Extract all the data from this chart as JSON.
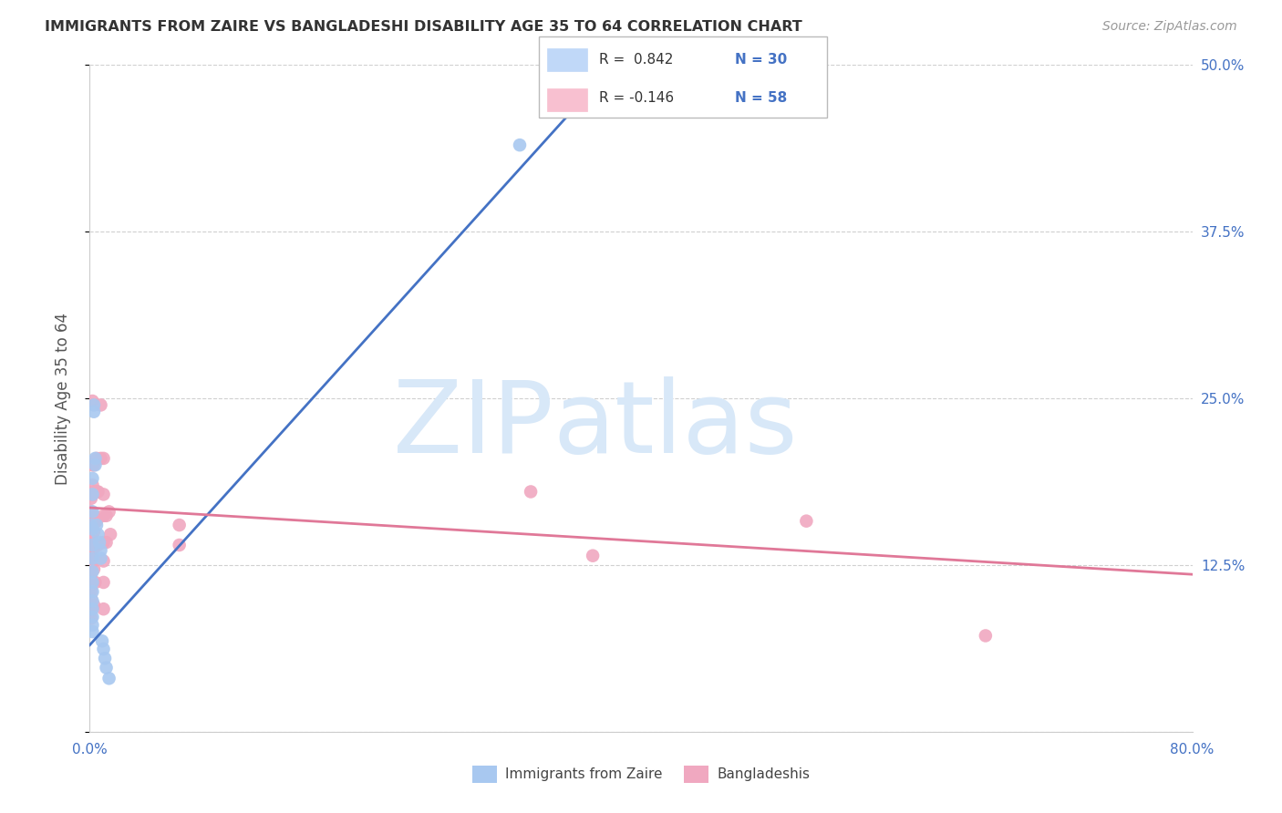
{
  "title": "IMMIGRANTS FROM ZAIRE VS BANGLADESHI DISABILITY AGE 35 TO 64 CORRELATION CHART",
  "source": "Source: ZipAtlas.com",
  "ylabel": "Disability Age 35 to 64",
  "xlim": [
    0.0,
    0.8
  ],
  "ylim": [
    0.0,
    0.5
  ],
  "yticks": [
    0.0,
    0.125,
    0.25,
    0.375,
    0.5
  ],
  "yticklabels_right": [
    "",
    "12.5%",
    "25.0%",
    "37.5%",
    "50.0%"
  ],
  "right_ytick_color": "#4472c4",
  "grid_color": "#d0d0d0",
  "background_color": "#ffffff",
  "watermark_line1": "ZIP",
  "watermark_line2": "atlas",
  "watermark_color": "#d8e8f8",
  "zaire_color": "#a8c8f0",
  "bangladeshi_color": "#f0a8c0",
  "zaire_line_color": "#4472c4",
  "bangladeshi_line_color": "#e07898",
  "legend_box_color1": "#c0d8f8",
  "legend_box_color2": "#f8c0d0",
  "legend_r1_color": "#4472c4",
  "legend_n1_color": "#4472c4",
  "legend_r2_color": "#e07898",
  "legend_n2_color": "#4472c4",
  "zaire_scatter": [
    [
      0.001,
      0.155
    ],
    [
      0.002,
      0.19
    ],
    [
      0.002,
      0.178
    ],
    [
      0.002,
      0.165
    ],
    [
      0.002,
      0.152
    ],
    [
      0.002,
      0.14
    ],
    [
      0.002,
      0.13
    ],
    [
      0.002,
      0.12
    ],
    [
      0.002,
      0.112
    ],
    [
      0.002,
      0.105
    ],
    [
      0.002,
      0.098
    ],
    [
      0.002,
      0.092
    ],
    [
      0.002,
      0.086
    ],
    [
      0.002,
      0.08
    ],
    [
      0.002,
      0.075
    ],
    [
      0.003,
      0.245
    ],
    [
      0.003,
      0.24
    ],
    [
      0.004,
      0.205
    ],
    [
      0.004,
      0.2
    ],
    [
      0.005,
      0.155
    ],
    [
      0.006,
      0.148
    ],
    [
      0.007,
      0.142
    ],
    [
      0.008,
      0.136
    ],
    [
      0.008,
      0.13
    ],
    [
      0.009,
      0.068
    ],
    [
      0.01,
      0.062
    ],
    [
      0.011,
      0.055
    ],
    [
      0.012,
      0.048
    ],
    [
      0.014,
      0.04
    ],
    [
      0.312,
      0.44
    ]
  ],
  "bangladeshi_scatter": [
    [
      0.001,
      0.175
    ],
    [
      0.001,
      0.165
    ],
    [
      0.001,
      0.155
    ],
    [
      0.001,
      0.148
    ],
    [
      0.001,
      0.142
    ],
    [
      0.001,
      0.136
    ],
    [
      0.001,
      0.13
    ],
    [
      0.001,
      0.125
    ],
    [
      0.001,
      0.12
    ],
    [
      0.001,
      0.115
    ],
    [
      0.001,
      0.11
    ],
    [
      0.001,
      0.105
    ],
    [
      0.001,
      0.1
    ],
    [
      0.001,
      0.095
    ],
    [
      0.001,
      0.09
    ],
    [
      0.001,
      0.085
    ],
    [
      0.002,
      0.248
    ],
    [
      0.002,
      0.2
    ],
    [
      0.002,
      0.185
    ],
    [
      0.002,
      0.178
    ],
    [
      0.002,
      0.162
    ],
    [
      0.002,
      0.152
    ],
    [
      0.002,
      0.142
    ],
    [
      0.002,
      0.132
    ],
    [
      0.003,
      0.2
    ],
    [
      0.003,
      0.18
    ],
    [
      0.003,
      0.162
    ],
    [
      0.003,
      0.15
    ],
    [
      0.003,
      0.138
    ],
    [
      0.003,
      0.122
    ],
    [
      0.003,
      0.095
    ],
    [
      0.004,
      0.18
    ],
    [
      0.004,
      0.158
    ],
    [
      0.004,
      0.14
    ],
    [
      0.004,
      0.112
    ],
    [
      0.005,
      0.205
    ],
    [
      0.005,
      0.18
    ],
    [
      0.005,
      0.158
    ],
    [
      0.006,
      0.18
    ],
    [
      0.006,
      0.14
    ],
    [
      0.008,
      0.245
    ],
    [
      0.008,
      0.205
    ],
    [
      0.01,
      0.205
    ],
    [
      0.01,
      0.178
    ],
    [
      0.01,
      0.162
    ],
    [
      0.01,
      0.142
    ],
    [
      0.01,
      0.128
    ],
    [
      0.01,
      0.112
    ],
    [
      0.01,
      0.092
    ],
    [
      0.012,
      0.162
    ],
    [
      0.012,
      0.142
    ],
    [
      0.014,
      0.165
    ],
    [
      0.015,
      0.148
    ],
    [
      0.065,
      0.155
    ],
    [
      0.065,
      0.14
    ],
    [
      0.32,
      0.18
    ],
    [
      0.52,
      0.158
    ],
    [
      0.65,
      0.072
    ],
    [
      0.365,
      0.132
    ]
  ],
  "zaire_trendline_x": [
    0.0,
    0.38
  ],
  "zaire_trendline_y": [
    0.065,
    0.5
  ],
  "bangladeshi_trendline_x": [
    0.0,
    0.8
  ],
  "bangladeshi_trendline_y": [
    0.168,
    0.118
  ],
  "legend_labels": [
    "Immigrants from Zaire",
    "Bangladeshis"
  ]
}
